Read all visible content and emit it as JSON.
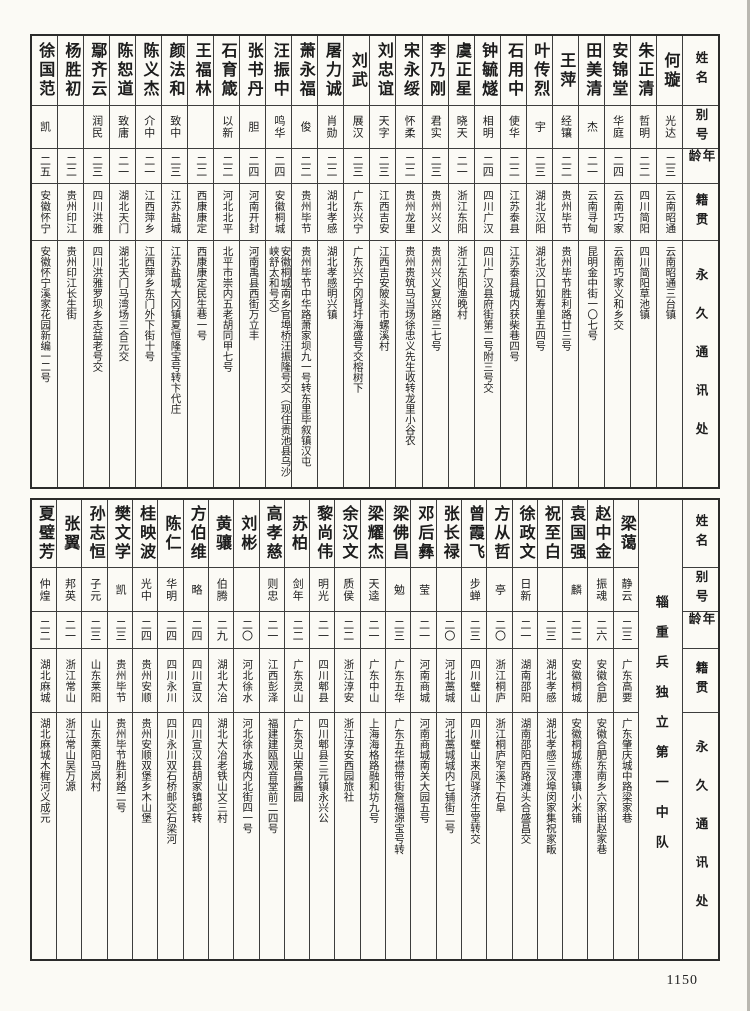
{
  "page_number": "1150",
  "colors": {
    "paper": "#fbfaf5",
    "ink": "#1c1c1c"
  },
  "header_labels": {
    "name": "姓名",
    "alias": "别号",
    "age": "年龄",
    "native": "籍贯",
    "address": "永久通讯处"
  },
  "unit_label": "辎重兵独立第一中队",
  "tables": {
    "top": {
      "entries": [
        {
          "name": "何璇",
          "alias": "光达",
          "age": "二三",
          "native": "云南昭通",
          "address": "云南昭通三台镇"
        },
        {
          "name": "朱正清",
          "alias": "哲明",
          "age": "二二",
          "native": "四川简阳",
          "address": "四川简阳草池镇"
        },
        {
          "name": "安锦堂",
          "alias": "华庭",
          "age": "二四",
          "native": "云南巧家",
          "address": "云南巧家义和乡交"
        },
        {
          "name": "田美清",
          "alias": "杰",
          "age": "二一",
          "native": "云南寻甸",
          "address": "昆明金中街一〇七号"
        },
        {
          "name": "王萍",
          "alias": "经镶",
          "age": "二二",
          "native": "贵州毕节",
          "address": "贵州毕节胜利路廿三号"
        },
        {
          "name": "叶传烈",
          "alias": "宇",
          "age": "二三",
          "native": "湖北汉阳",
          "address": "湖北汉口如寿里五四号"
        },
        {
          "name": "石用中",
          "alias": "使华",
          "age": "二二",
          "native": "江苏泰县",
          "address": "江苏泰县城内获柴巷四号"
        },
        {
          "name": "钟毓燧",
          "alias": "相明",
          "age": "二四",
          "native": "四川广汉",
          "address": "四川广汉县府街第二号附三号交"
        },
        {
          "name": "虞正星",
          "alias": "晓天",
          "age": "二一",
          "native": "浙江东阳",
          "address": "浙江东阳渔晚村"
        },
        {
          "name": "李乃刚",
          "alias": "君实",
          "age": "二三",
          "native": "贵州兴义",
          "address": "贵州兴义复兴路三七号"
        },
        {
          "name": "宋永绥",
          "alias": "怀柔",
          "age": "二二",
          "native": "贵州龙里",
          "address": "贵州贵筑马当场徐忠义先生收转龙里小谷农"
        },
        {
          "name": "刘忠谊",
          "alias": "天字",
          "age": "二三",
          "native": "江西吉安",
          "address": "江西吉安陂头市螺溪村"
        },
        {
          "name": "刘武",
          "alias": "展汉",
          "age": "二三",
          "native": "广东兴宁",
          "address": "广东兴宁冈背圩海盛号交榕树下"
        },
        {
          "name": "屠力诚",
          "alias": "肖勋",
          "age": "二二",
          "native": "湖北孝感",
          "address": "湖北孝感明兴镇"
        },
        {
          "name": "萧永福",
          "alias": "俊",
          "age": "二二",
          "native": "贵州毕节",
          "address": "贵州毕节中华路萧家坝九一号转东里毕叙镇汉屯"
        },
        {
          "name": "汪振中",
          "alias": "鸣华",
          "age": "二四",
          "native": "安徽桐城",
          "address": "安徽桐城南乡官埠桥汪振隆号交（现住贵池县乌沙峡舒太和号交）"
        },
        {
          "name": "张书丹",
          "alias": "胆",
          "age": "二四",
          "native": "河南开封",
          "address": "河南禹县西街万立丰"
        },
        {
          "name": "石育箴",
          "alias": "以新",
          "age": "二二",
          "native": "河北北平",
          "address": "北平市崇内五老胡同甲七号"
        },
        {
          "name": "王福林",
          "alias": "",
          "age": "二二",
          "native": "西康康定",
          "address": "西康康定民生巷一号"
        },
        {
          "name": "颜法和",
          "alias": "致中",
          "age": "二三",
          "native": "江苏盐城",
          "address": "江苏盐城大冈镇夏恒隆宝号转卞代庄"
        },
        {
          "name": "陈义杰",
          "alias": "介中",
          "age": "二一",
          "native": "江西萍乡",
          "address": "江西萍乡东门外下街十号"
        },
        {
          "name": "陈恕道",
          "alias": "致庸",
          "age": "二一",
          "native": "湖北天门",
          "address": "湖北天门马湾场三合元交"
        },
        {
          "name": "鄢齐云",
          "alias": "润民",
          "age": "二三",
          "native": "四川洪雅",
          "address": "四川洪雅罗坝乡志益老号交"
        },
        {
          "name": "杨胜初",
          "alias": "",
          "age": "二二",
          "native": "贵州印江",
          "address": "贵州印江长生街"
        },
        {
          "name": "徐国范",
          "alias": "凯",
          "age": "二五",
          "native": "安徽怀宁",
          "address": "安徽怀宁溪家花园新编一二号"
        }
      ]
    },
    "bottom": {
      "entries": [
        {
          "name": "梁蔼",
          "alias": "静云",
          "age": "二三",
          "native": "广东高要",
          "address": "广东肇庆城中路梁家巷"
        },
        {
          "name": "赵中金",
          "alias": "振魂",
          "age": "二六",
          "native": "安徽合肥",
          "address": "安徽合肥东南乡六家畄赵家巷"
        },
        {
          "name": "袁国强",
          "alias": "麟",
          "age": "二二",
          "native": "安徽桐城",
          "address": "安徽桐城练潭镇小米铺"
        },
        {
          "name": "祝至白",
          "alias": "",
          "age": "二三",
          "native": "湖北孝感",
          "address": "湖北孝感三汊埠闵家集祝家畈"
        },
        {
          "name": "徐政文",
          "alias": "日新",
          "age": "二一",
          "native": "湖南邵阳",
          "address": "湖南邵阳西路滩头合盛昌交"
        },
        {
          "name": "方从哲",
          "alias": "亭",
          "age": "二〇",
          "native": "浙江桐庐",
          "address": "浙江桐庐窄溪下石阜"
        },
        {
          "name": "曾霞飞",
          "alias": "步蝉",
          "age": "二三",
          "native": "四川璧山",
          "address": "四川璧山来凤驿济生堂转交"
        },
        {
          "name": "张长禄",
          "alias": "",
          "age": "二〇",
          "native": "河北藁城",
          "address": "河北藁城城内七铺街二号"
        },
        {
          "name": "邓后彝",
          "alias": "莹",
          "age": "二一",
          "native": "河南商城",
          "address": "河南商城南关大园五号"
        },
        {
          "name": "梁佛昌",
          "alias": "勉",
          "age": "二三",
          "native": "广东五华",
          "address": "广东五华襟带街詹福源宝号转"
        },
        {
          "name": "梁耀杰",
          "alias": "天逵",
          "age": "二一",
          "native": "广东中山",
          "address": "上海海格路融和坊九号"
        },
        {
          "name": "余汉文",
          "alias": "质侯",
          "age": "二二",
          "native": "浙江淳安",
          "address": "浙江淳安西园旅社"
        },
        {
          "name": "黎尚伟",
          "alias": "明光",
          "age": "二一",
          "native": "四川郫县",
          "address": "四川郫县三元镇永兴公"
        },
        {
          "name": "苏柏",
          "alias": "剑年",
          "age": "二二",
          "native": "广东灵山",
          "address": "广东灵山荣昌酱园"
        },
        {
          "name": "高孝慈",
          "alias": "则忠",
          "age": "二一",
          "native": "江西彭泽",
          "address": "福建建瓯观音堂前二四号"
        },
        {
          "name": "刘彬",
          "alias": "",
          "age": "二〇",
          "native": "河北徐水",
          "address": "河北徐水城内北街四一号"
        },
        {
          "name": "黄骧",
          "alias": "伯腾",
          "age": "二九",
          "native": "湖北大冶",
          "address": "湖北大冶老铁山文三村"
        },
        {
          "name": "方伯维",
          "alias": "略",
          "age": "二四",
          "native": "四川宣汉",
          "address": "四川宣汉县胡家镇邮转"
        },
        {
          "name": "陈仁",
          "alias": "华明",
          "age": "二四",
          "native": "四川永川",
          "address": "四川永川双石桥邮交石梁河"
        },
        {
          "name": "桂映波",
          "alias": "光中",
          "age": "二四",
          "native": "贵州安顺",
          "address": "贵州安顺双堡乡木山堡"
        },
        {
          "name": "樊文学",
          "alias": "凯",
          "age": "二三",
          "native": "贵州毕节",
          "address": "贵州毕节胜利路二号"
        },
        {
          "name": "孙志恒",
          "alias": "子元",
          "age": "二三",
          "native": "山东莱阳",
          "address": "山东莱阳马岚村"
        },
        {
          "name": "张翼",
          "alias": "邦英",
          "age": "二一",
          "native": "浙江常山",
          "address": "浙江常山吴万源"
        },
        {
          "name": "夏璧芳",
          "alias": "仲煌",
          "age": "二二",
          "native": "湖北麻城",
          "address": "湖北麻城木樨河义成元"
        }
      ]
    }
  }
}
